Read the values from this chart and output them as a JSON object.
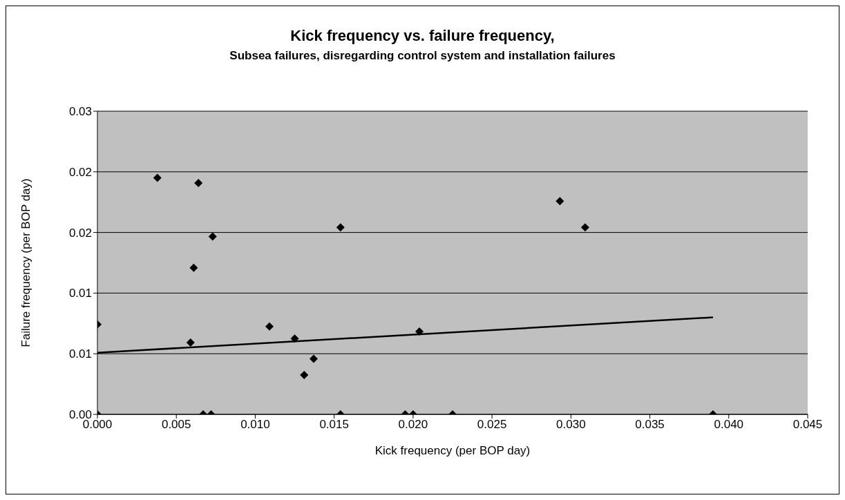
{
  "chart_data": {
    "type": "scatter",
    "title": "Kick frequency vs. failure frequency,",
    "subtitle": "Subsea failures, disregarding control system and installation failures",
    "xlabel": "Kick frequency (per BOP day)",
    "ylabel": "Failure frequency (per BOP day)",
    "xlim": [
      0,
      0.045
    ],
    "xticks": [
      {
        "value": 0,
        "label": "0.000"
      },
      {
        "value": 0.005,
        "label": "0.005"
      },
      {
        "value": 0.01,
        "label": "0.010"
      },
      {
        "value": 0.015,
        "label": "0.015"
      },
      {
        "value": 0.02,
        "label": "0.020"
      },
      {
        "value": 0.025,
        "label": "0.025"
      },
      {
        "value": 0.03,
        "label": "0.030"
      },
      {
        "value": 0.035,
        "label": "0.035"
      },
      {
        "value": 0.04,
        "label": "0.040"
      },
      {
        "value": 0.045,
        "label": "0.045"
      }
    ],
    "ylim": [
      0,
      0.03
    ],
    "yticks": [
      {
        "value": 0,
        "label": "0.00"
      },
      {
        "value": 0.006,
        "label": "0.01"
      },
      {
        "value": 0.012,
        "label": "0.01"
      },
      {
        "value": 0.018,
        "label": "0.02"
      },
      {
        "value": 0.024,
        "label": "0.02"
      },
      {
        "value": 0.03,
        "label": "0.03"
      }
    ],
    "grid": "y",
    "marker": "diamond",
    "series": [
      {
        "type": "scatter",
        "color": "#000000",
        "x": [
          0,
          0,
          0.0038,
          0.0064,
          0.0073,
          0.0061,
          0.0059,
          0.0067,
          0.0072,
          0.0109,
          0.0125,
          0.0137,
          0.0131,
          0.0154,
          0.0154,
          0.0195,
          0.02,
          0.0225,
          0.0204,
          0.0293,
          0.0309,
          0.039
        ],
        "values": [
          0.0089,
          0,
          0.0234,
          0.0229,
          0.0176,
          0.0145,
          0.0071,
          0,
          0,
          0.0087,
          0.0075,
          0.0055,
          0.0039,
          0.0185,
          0,
          0,
          0,
          0,
          0.0082,
          0.0211,
          0.0185,
          0
        ]
      },
      {
        "type": "line",
        "color": "#000000",
        "marker": "none",
        "line_style": "solid",
        "x": [
          0,
          0.039
        ],
        "values": [
          0.0061,
          0.0096
        ]
      }
    ]
  }
}
